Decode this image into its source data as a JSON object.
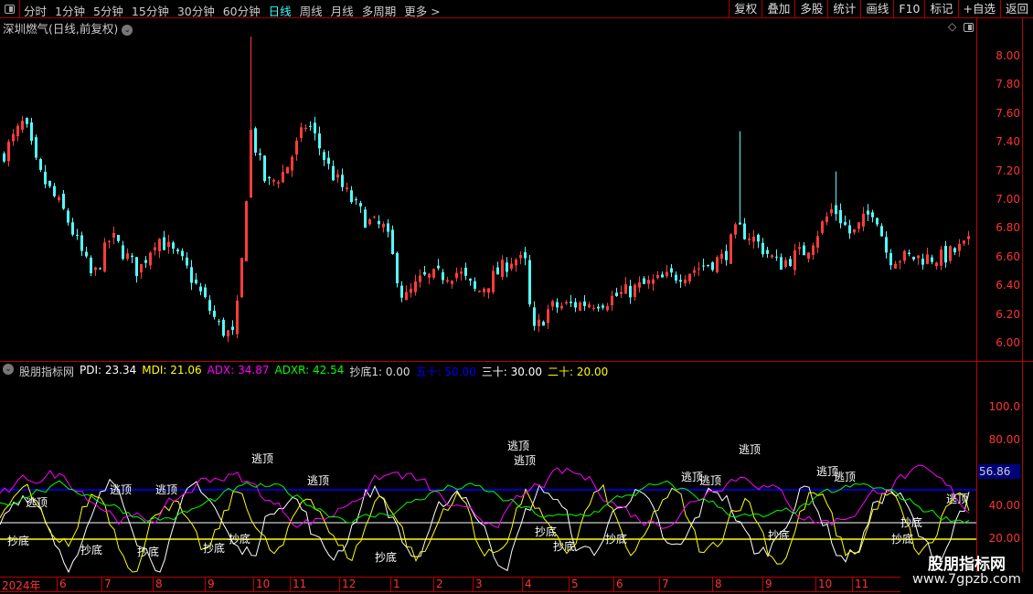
{
  "toolbar": {
    "periods": [
      "分时",
      "1分钟",
      "5分钟",
      "15分钟",
      "30分钟",
      "60分钟",
      "日线",
      "周线",
      "月线",
      "多周期",
      "更多 >"
    ],
    "active": "日线",
    "buttons": [
      "复权",
      "叠加",
      "多股",
      "统计",
      "画线",
      "F10",
      "标记",
      "+自选",
      "返回"
    ]
  },
  "price_chart": {
    "title": "深圳燃气(日线,前复权)",
    "y_ticks": [
      "8.00",
      "7.80",
      "7.60",
      "7.40",
      "7.20",
      "7.00",
      "6.80",
      "6.60",
      "6.40",
      "6.20",
      "6.00"
    ],
    "up_color": "#ff3c3c",
    "down_color": "#54fcfc",
    "anchors": [
      [
        0,
        7.3
      ],
      [
        25,
        7.55
      ],
      [
        40,
        7.2
      ],
      [
        70,
        6.9
      ],
      [
        100,
        6.45
      ],
      [
        120,
        6.75
      ],
      [
        150,
        6.5
      ],
      [
        170,
        6.75
      ],
      [
        200,
        6.55
      ],
      [
        240,
        6.1
      ],
      [
        255,
        6.05
      ],
      [
        265,
        6.7
      ],
      [
        272,
        7.5
      ],
      [
        290,
        7.1
      ],
      [
        310,
        7.2
      ],
      [
        335,
        7.55
      ],
      [
        360,
        7.2
      ],
      [
        400,
        6.85
      ],
      [
        420,
        6.8
      ],
      [
        440,
        6.3
      ],
      [
        460,
        6.45
      ],
      [
        500,
        6.5
      ],
      [
        520,
        6.35
      ],
      [
        560,
        6.6
      ],
      [
        575,
        6.55
      ],
      [
        580,
        6.05
      ],
      [
        600,
        6.25
      ],
      [
        660,
        6.3
      ],
      [
        700,
        6.4
      ],
      [
        750,
        6.5
      ],
      [
        790,
        6.6
      ],
      [
        805,
        6.8
      ],
      [
        820,
        6.75
      ],
      [
        850,
        6.55
      ],
      [
        880,
        6.65
      ],
      [
        910,
        6.95
      ],
      [
        930,
        6.75
      ],
      [
        955,
        6.95
      ],
      [
        970,
        6.6
      ],
      [
        1010,
        6.6
      ],
      [
        1030,
        6.6
      ],
      [
        1060,
        6.7
      ]
    ]
  },
  "indicator": {
    "name": "股朋指标网",
    "legend": [
      {
        "label": "PDI: 23.34",
        "color": "#ffffff"
      },
      {
        "label": "MDI: 21.06",
        "color": "#ffff00"
      },
      {
        "label": "ADX: 34.87",
        "color": "#ff00ff"
      },
      {
        "label": "ADXR: 42.54",
        "color": "#00ff00"
      },
      {
        "label": "抄底1: 0.00",
        "color": "#dddddd"
      },
      {
        "label": "五十: 50.00",
        "color": "#0000ff"
      },
      {
        "label": "三十: 30.00",
        "color": "#ffffff"
      },
      {
        "label": "二十: 20.00",
        "color": "#ffff00"
      }
    ],
    "y_ticks": [
      "100.0",
      "80.00",
      "40.00",
      "20.00"
    ],
    "current_value": "56.86",
    "signal_top": "逃顶",
    "signal_bottom": "抄底"
  },
  "date_axis": [
    "2024年",
    "6",
    "7",
    "8",
    "9",
    "10",
    "11",
    "12",
    "1",
    "2",
    "3",
    "4",
    "5",
    "6",
    "7",
    "8",
    "9",
    "10",
    "11"
  ],
  "watermark": {
    "name": "股朋指标网",
    "url": "www.7gpzb.com"
  }
}
